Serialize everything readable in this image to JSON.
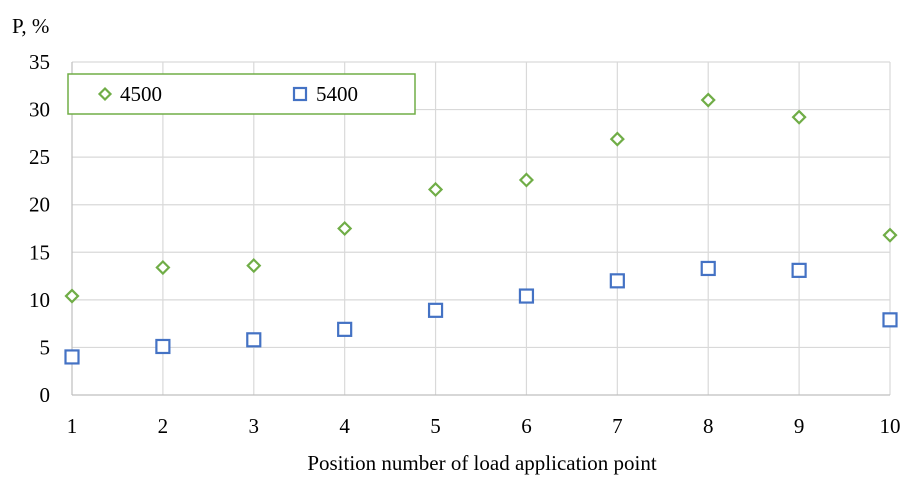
{
  "chart_data": {
    "type": "scatter",
    "title": "",
    "xlabel": "Position number of load application point",
    "ylabel": "P, %",
    "x": [
      1,
      2,
      3,
      4,
      5,
      6,
      7,
      8,
      9,
      10
    ],
    "xticks": [
      "1",
      "2",
      "3",
      "4",
      "5",
      "6",
      "7",
      "8",
      "9",
      "10"
    ],
    "yticks": [
      "0",
      "5",
      "10",
      "15",
      "20",
      "25",
      "30",
      "35"
    ],
    "ylim": [
      0,
      35
    ],
    "xlim": [
      1,
      10
    ],
    "grid": true,
    "legend_position": "top-left",
    "series": [
      {
        "name": "4500",
        "marker": "diamond",
        "color": "#70ad47",
        "values": [
          10.4,
          13.4,
          13.6,
          17.5,
          21.6,
          22.6,
          26.9,
          31.0,
          29.2,
          16.8
        ]
      },
      {
        "name": "5400",
        "marker": "square",
        "color": "#4472c4",
        "values": [
          4.0,
          5.1,
          5.8,
          6.9,
          8.9,
          10.4,
          12.0,
          13.3,
          13.1,
          7.9
        ]
      }
    ]
  }
}
